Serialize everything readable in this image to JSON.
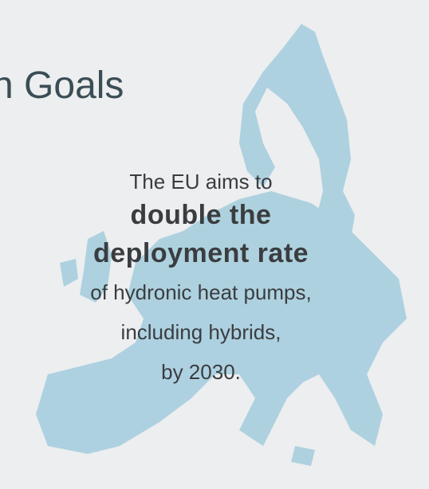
{
  "title": "n Goals",
  "body": {
    "intro": "The EU aims to",
    "highlight": [
      "double the",
      "deployment rate"
    ],
    "lines": [
      "of hydronic heat pumps,",
      "including hybrids,",
      "by 2030."
    ]
  }
}
